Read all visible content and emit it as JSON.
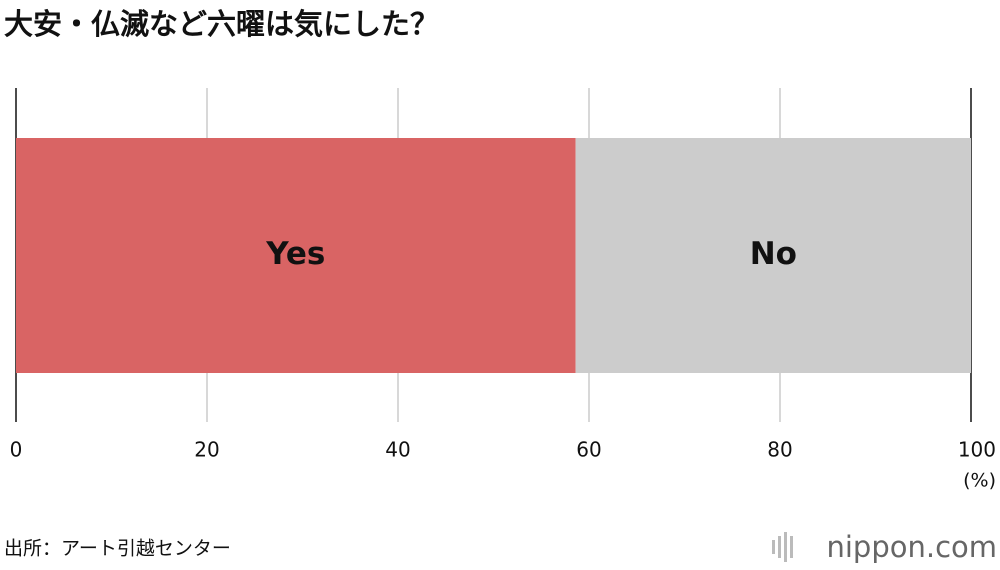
{
  "chart_data": {
    "type": "bar",
    "orientation": "horizontal",
    "stacked": true,
    "title": "大安・仏滅など六曜は気にした？",
    "categories": [
      null
    ],
    "series": [
      {
        "name": "Yes",
        "color": "#d96464",
        "values": [
          58.6
        ]
      },
      {
        "name": "No",
        "color": "#cccccc",
        "values": [
          41.4
        ]
      }
    ],
    "xlim": [
      0,
      100
    ],
    "xticks": [
      0,
      20,
      40,
      60,
      80,
      100
    ],
    "grid": true,
    "x_unit": "(%)",
    "source": "出所：アート引越センター",
    "logo": "nippon.com"
  }
}
